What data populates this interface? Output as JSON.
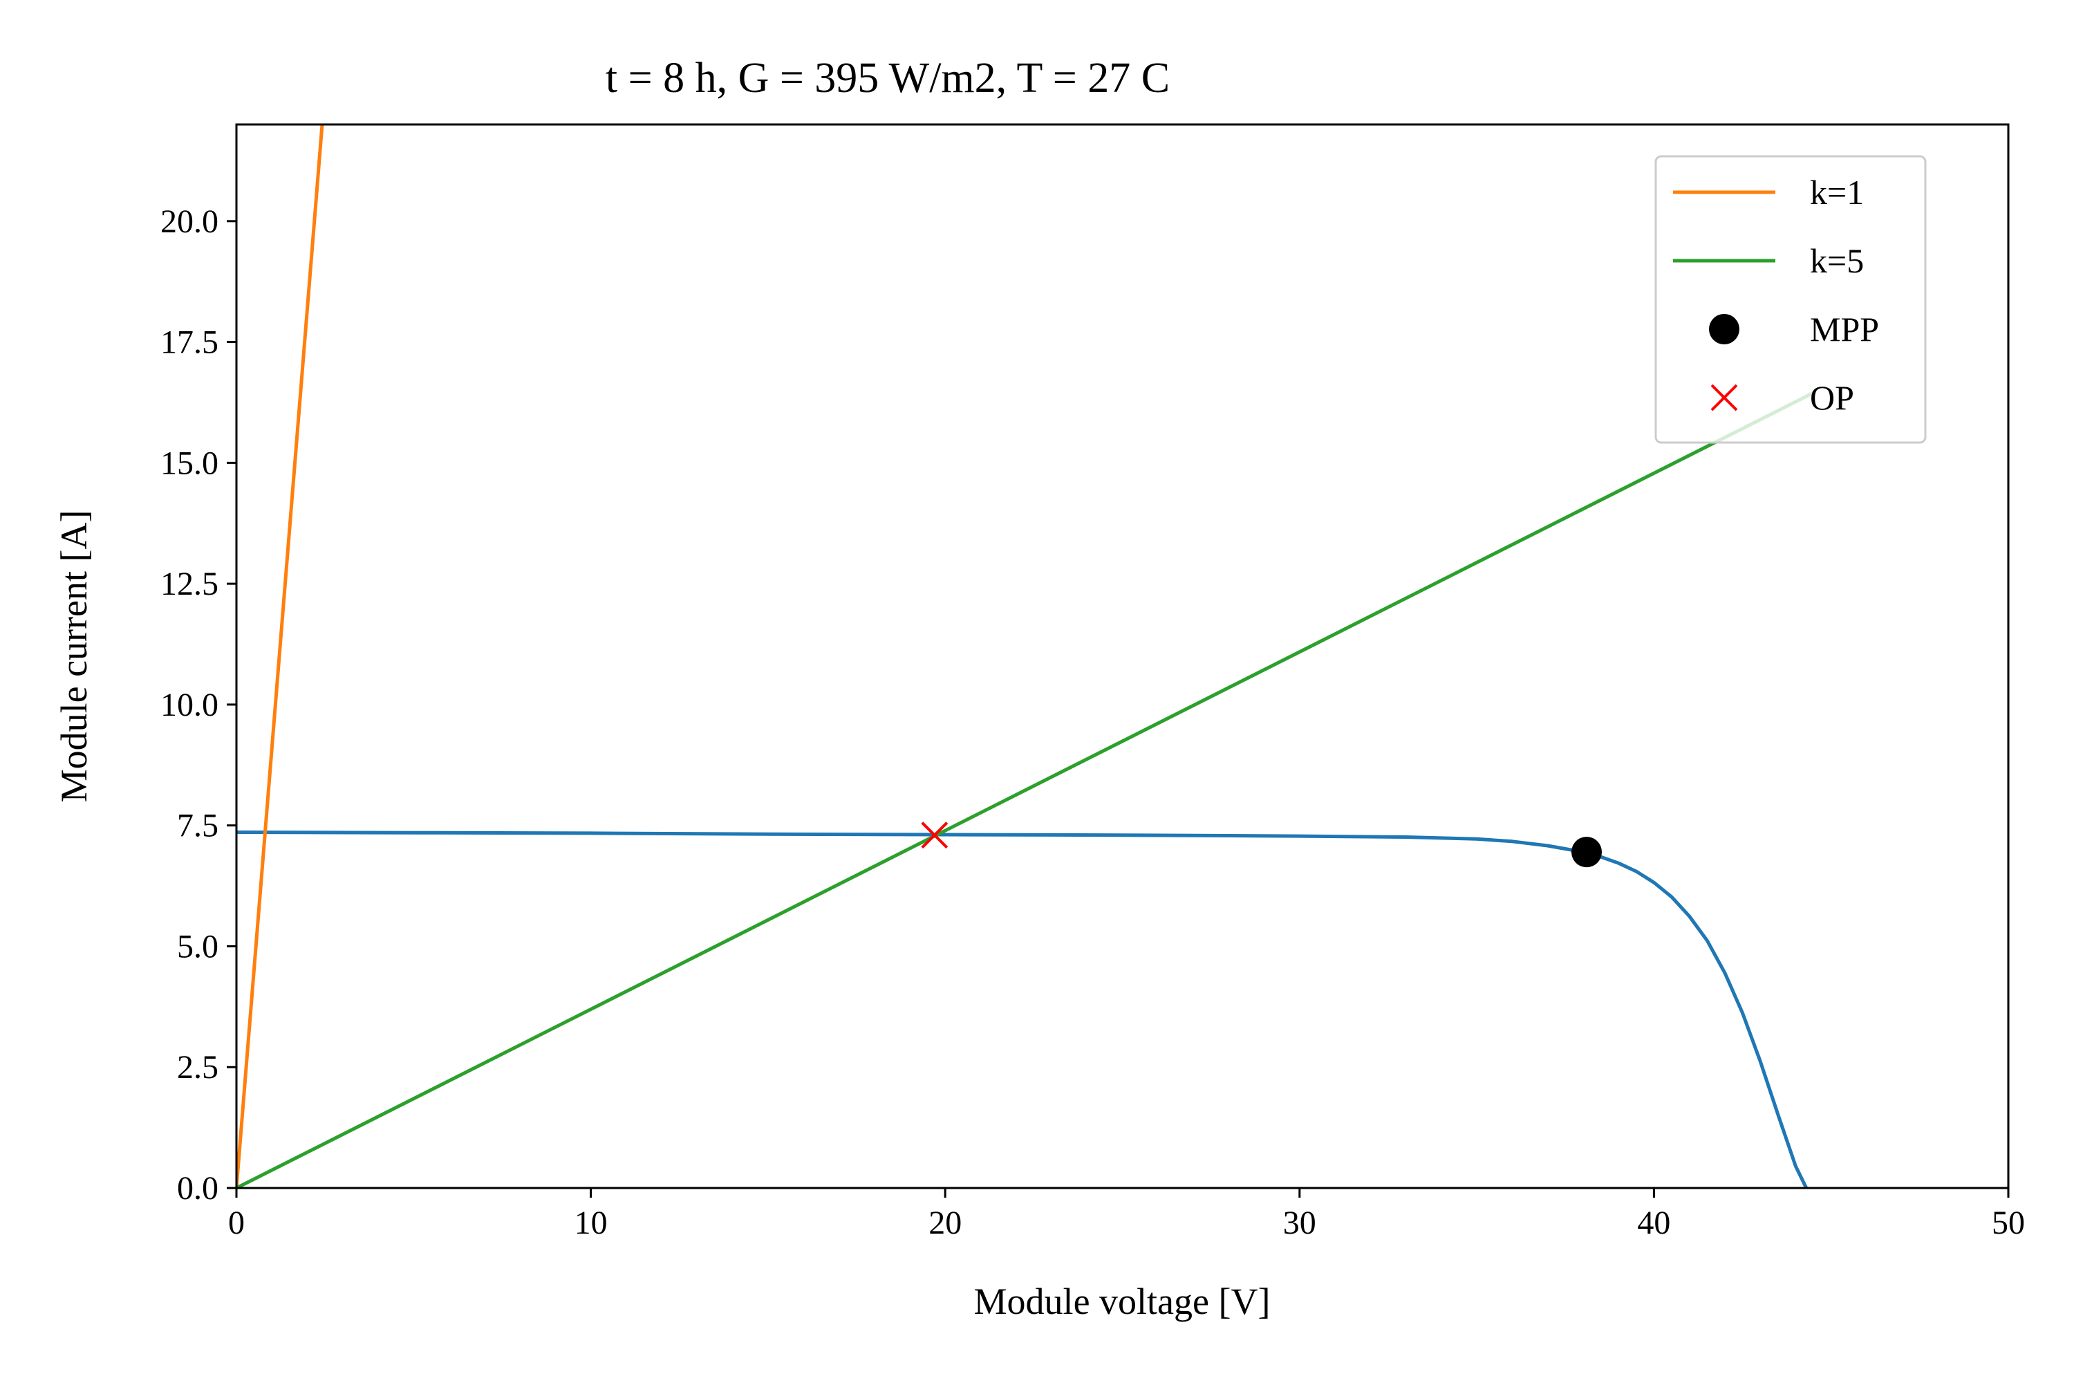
{
  "chart_data": {
    "type": "line",
    "title": "t = 8 h, G = 395 W/m2, T = 27 C",
    "xlabel": "Module voltage [V]",
    "ylabel": "Module current [A]",
    "xlim": [
      0,
      50
    ],
    "ylim": [
      0,
      22
    ],
    "xticks": [
      0,
      10,
      20,
      30,
      40,
      50
    ],
    "yticks": [
      0,
      2.5,
      5,
      7.5,
      10,
      12.5,
      15,
      17.5,
      20
    ],
    "ytick_labels": [
      "0.0",
      "2.5",
      "5.0",
      "7.5",
      "10.0",
      "12.5",
      "15.0",
      "17.5",
      "20.0"
    ],
    "grid": false,
    "legend_position": "top-right",
    "series": [
      {
        "kind": "line",
        "color": "#1f77b4",
        "x": [
          0,
          5,
          10,
          15,
          20,
          25,
          30,
          33,
          35,
          36,
          37,
          38,
          38.5,
          39,
          39.5,
          40,
          40.5,
          41,
          41.5,
          42,
          42.5,
          43,
          43.5,
          44,
          44.3
        ],
        "y": [
          7.36,
          7.35,
          7.34,
          7.32,
          7.31,
          7.3,
          7.28,
          7.26,
          7.22,
          7.17,
          7.08,
          6.95,
          6.85,
          6.72,
          6.55,
          6.32,
          6.02,
          5.62,
          5.12,
          4.45,
          3.62,
          2.62,
          1.52,
          0.45,
          0
        ]
      },
      {
        "kind": "line",
        "name": "k=1",
        "color": "#ff7f0e",
        "x": [
          0,
          2.42
        ],
        "y": [
          0,
          22
        ]
      },
      {
        "kind": "line",
        "name": "k=5",
        "color": "#2ca02c",
        "x": [
          0,
          44.5
        ],
        "y": [
          0,
          16.45
        ]
      },
      {
        "kind": "marker",
        "name": "MPP",
        "marker": "circle",
        "color": "#000000",
        "x": [
          38.1
        ],
        "y": [
          6.95
        ]
      },
      {
        "kind": "marker",
        "name": "OP",
        "marker": "x",
        "color": "#ff0000",
        "x": [
          19.7
        ],
        "y": [
          7.3
        ]
      }
    ]
  }
}
